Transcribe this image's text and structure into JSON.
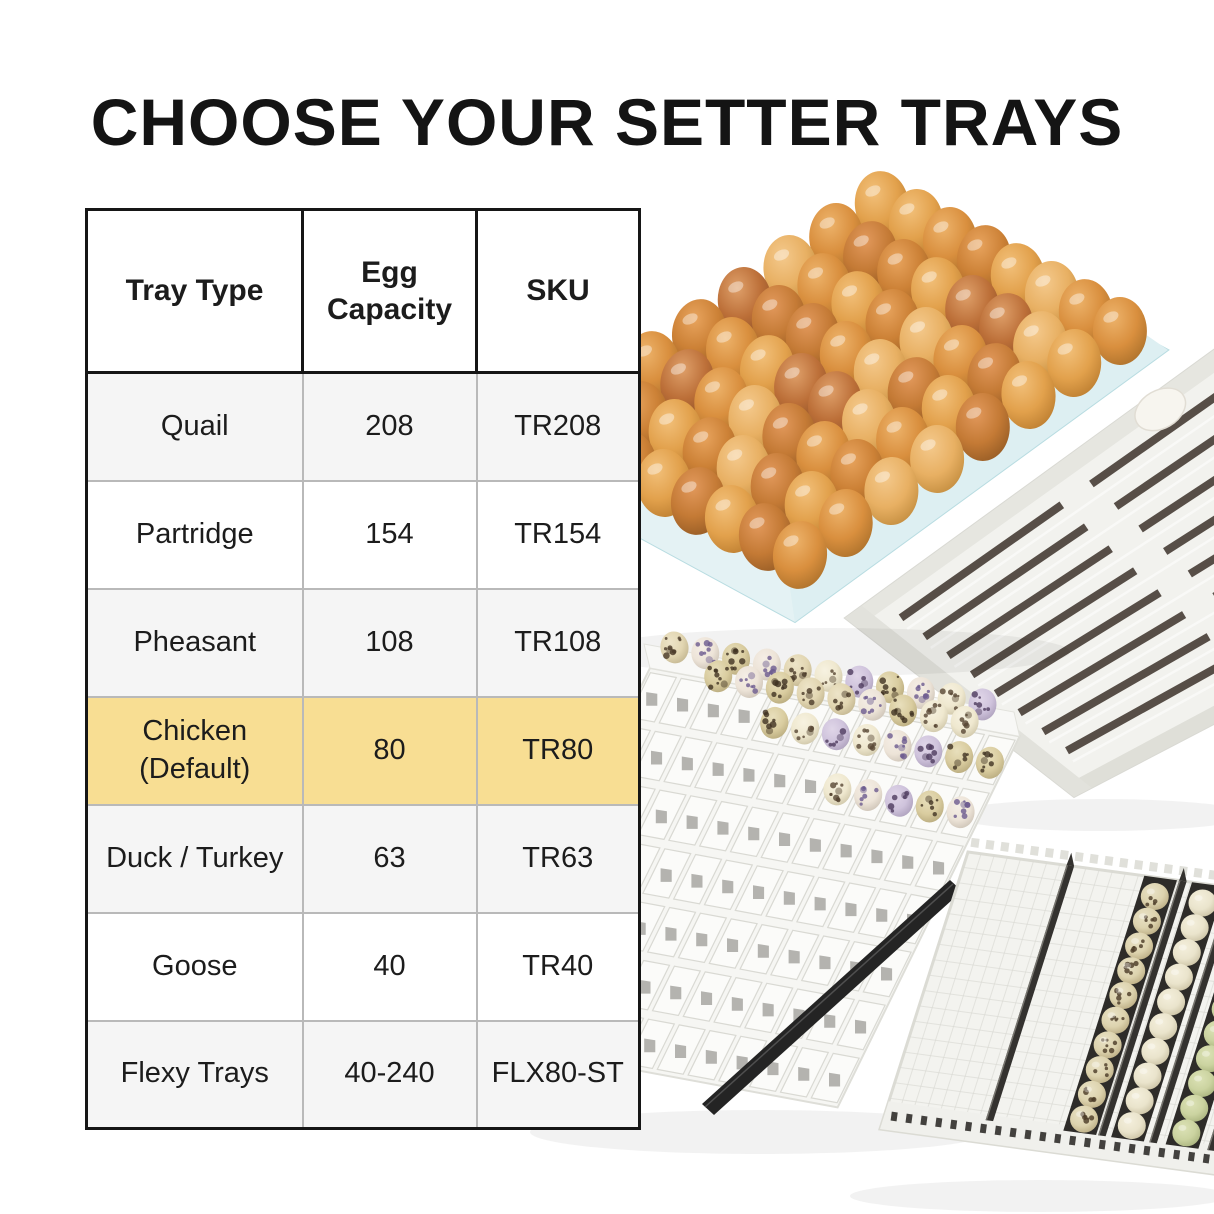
{
  "title": "CHOOSE YOUR SETTER TRAYS",
  "table": {
    "headers": [
      "Tray Type",
      "Egg Capacity",
      "SKU"
    ],
    "rows": [
      {
        "tray_type": "Quail",
        "egg_capacity": "208",
        "sku": "TR208"
      },
      {
        "tray_type": "Partridge",
        "egg_capacity": "154",
        "sku": "TR154"
      },
      {
        "tray_type": "Pheasant",
        "egg_capacity": "108",
        "sku": "TR108"
      },
      {
        "tray_type": "Chicken (Default)",
        "egg_capacity": "80",
        "sku": "TR80"
      },
      {
        "tray_type": "Duck / Turkey",
        "egg_capacity": "63",
        "sku": "TR63"
      },
      {
        "tray_type": "Goose",
        "egg_capacity": "40",
        "sku": "TR40"
      },
      {
        "tray_type": "Flexy Trays",
        "egg_capacity": "40-240",
        "sku": "FLX80-ST"
      }
    ],
    "highlighted_row": "Chicken (Default)",
    "colors": {
      "highlight_bg": "#F8DE93",
      "alt_row_bg": "#F5F5F5",
      "white_row_bg": "#FFFFFF",
      "outer_border": "#161616",
      "inner_border": "#B9B9B9",
      "text": "#1C1C1C"
    }
  },
  "photos": {
    "chicken_egg_tray": {
      "description": "pale blue setter tray filled with brown chicken eggs",
      "tray_color": "#CFE8EA",
      "tray_edge_color": "#B8DCE1",
      "egg_palette": [
        [
          "#F2C07A",
          "#E2A14C",
          "#B97B2E"
        ],
        [
          "#EDB36B",
          "#D98F3E",
          "#A96F2A"
        ],
        [
          "#E8A45E",
          "#CC8136",
          "#9C6226"
        ],
        [
          "#F4C98C",
          "#E8B063",
          "#C08A3C"
        ],
        [
          "#E2995C",
          "#C47A35",
          "#935A24"
        ],
        [
          "#DFA06A",
          "#BC6F38",
          "#8E5128"
        ]
      ]
    },
    "setter_base_tray": {
      "description": "white slatted setter base tray with one pale egg",
      "body_color": "#F2F2EE",
      "rim_color": "#E6E6E0",
      "slot_color": "#4A4038"
    },
    "quail_cell_tray": {
      "description": "white cell tray partly filled with speckled quail eggs",
      "body_color": "#F6F6F3",
      "cell_line_color": "#D9D9D3",
      "hole_color": "#5E5A55",
      "egg_palette": [
        [
          "#F7F2E1",
          "#EFE8CF",
          "#CBC2A4",
          "#574633"
        ],
        [
          "#EDE4C8",
          "#E2D6B2",
          "#BFB28C",
          "#4A3A28"
        ],
        [
          "#E8DFBC",
          "#D9CC9F",
          "#B5A77A",
          "#403222"
        ],
        [
          "#E0D6E8",
          "#CFC3DC",
          "#A99CB8",
          "#4E3B5E"
        ],
        [
          "#F5EEE6",
          "#EDE4D8",
          "#C9BFB2",
          "#6B5A8E"
        ]
      ]
    },
    "flexy_tray": {
      "description": "white mesh flexy tray with dark divider rails and rows of quail, cream and green eggs",
      "body_color": "#F3F3EF",
      "mesh_color": "#D8D8D2",
      "divider_color": "#34322F",
      "channel_color": "#2E2C29",
      "egg_rows": [
        {
          "name": "quail",
          "colors": [
            "#E9E2C6",
            "#DDD3AE",
            "#B7A87E"
          ],
          "speckle": "#4A3A26"
        },
        {
          "name": "cream",
          "colors": [
            "#F4EFDC",
            "#EAE4CC",
            "#C8BFA0"
          ]
        },
        {
          "name": "green",
          "colors": [
            "#DCE2B6",
            "#CBD3A0",
            "#A6B07A"
          ]
        }
      ]
    },
    "divider_rail": {
      "description": "loose black divider rail",
      "color": "#242424"
    }
  }
}
